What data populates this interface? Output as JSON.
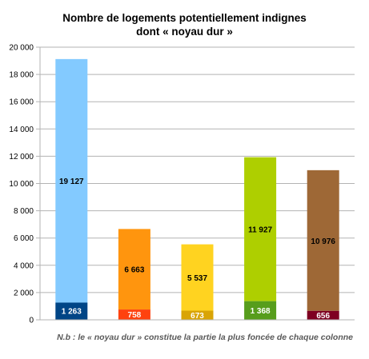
{
  "chart_data": {
    "type": "bar",
    "stacked": true,
    "title_line1": "Nombre de logements potentiellement indignes",
    "title_line2": "dont « noyau dur »",
    "ylim": [
      0,
      20000
    ],
    "yticks": [
      0,
      2000,
      4000,
      6000,
      8000,
      10000,
      12000,
      14000,
      16000,
      18000,
      20000
    ],
    "ytick_labels": [
      "0",
      "2 000",
      "4 000",
      "6 000",
      "8 000",
      "10 000",
      "12 000",
      "14 000",
      "16 000",
      "18 000",
      "20 000"
    ],
    "grid": true,
    "legend": "none",
    "bars": [
      {
        "core": 1263,
        "core_label": "1 263",
        "total": 19127,
        "total_label": "19 127",
        "core_color": "#004586",
        "rest_color": "#83caff",
        "core_text_color": "#ffffff"
      },
      {
        "core": 758,
        "core_label": "758",
        "total": 6663,
        "total_label": "6 663",
        "core_color": "#ff420e",
        "rest_color": "#ff950e",
        "core_text_color": "#ffffff"
      },
      {
        "core": 673,
        "core_label": "673",
        "total": 5537,
        "total_label": "5 537",
        "core_color": "#d9a406",
        "rest_color": "#ffd320",
        "core_text_color": "#ffffff"
      },
      {
        "core": 1368,
        "core_label": "1 368",
        "total": 11927,
        "total_label": "11 927",
        "core_color": "#579d1c",
        "rest_color": "#aecf00",
        "core_text_color": "#ffffff"
      },
      {
        "core": 656,
        "core_label": "656",
        "total": 10976,
        "total_label": "10 976",
        "core_color": "#7e0021",
        "rest_color": "#9e6836",
        "core_text_color": "#ffffff"
      }
    ],
    "note": "N.b : le « noyau dur » constitue la partie la plus foncée de chaque colonne"
  }
}
